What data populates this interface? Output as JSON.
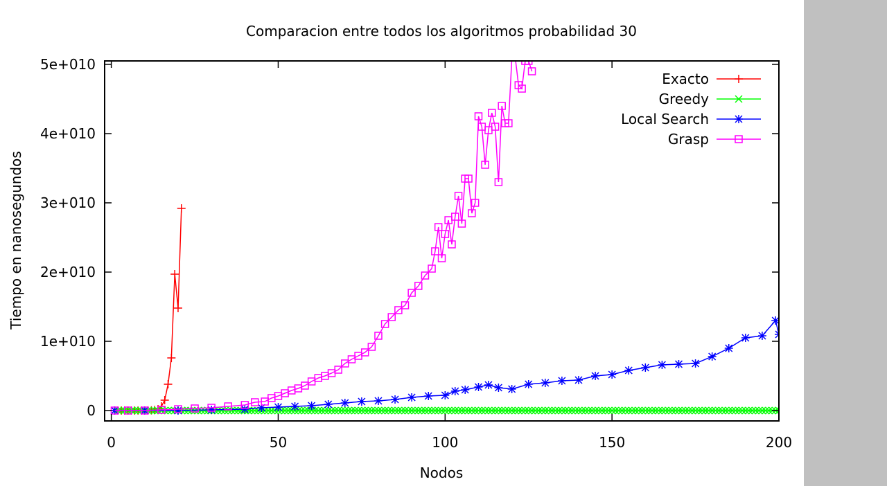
{
  "chart_data": {
    "type": "line",
    "title": "Comparacion entre todos los algoritmos probabilidad 30",
    "xlabel": "Nodos",
    "ylabel": "Tiempo en nanosegundos",
    "xlim": [
      -2,
      200
    ],
    "ylim": [
      -1500000000.0,
      50500000000.0
    ],
    "xticks": [
      0,
      50,
      100,
      150,
      200
    ],
    "xtick_labels": [
      "0",
      "50",
      "100",
      "150",
      "200"
    ],
    "yticks": [
      0,
      10000000000.0,
      20000000000.0,
      30000000000.0,
      40000000000.0,
      50000000000.0
    ],
    "ytick_labels": [
      "0",
      "1e+010",
      "2e+010",
      "3e+010",
      "4e+010",
      "5e+010"
    ],
    "legend_position": "top-right",
    "grid": false,
    "series": [
      {
        "name": "Exacto",
        "color": "#ff0000",
        "marker": "plus",
        "x": [
          1,
          2,
          3,
          4,
          5,
          6,
          7,
          8,
          9,
          10,
          11,
          12,
          13,
          14,
          15,
          16,
          17,
          18,
          19,
          20,
          21
        ],
        "y": [
          0,
          0,
          0,
          0,
          0,
          0,
          0,
          0,
          0,
          0,
          10000000.0,
          30000000.0,
          80000000.0,
          200000000.0,
          600000000.0,
          1500000000.0,
          3800000000.0,
          7600000000.0,
          19700000000.0,
          14800000000.0,
          29200000000.0
        ]
      },
      {
        "name": "Greedy",
        "color": "#00ff00",
        "marker": "x",
        "x_start": 1,
        "x_end": 200,
        "y_value": 0
      },
      {
        "name": "Local Search",
        "color": "#0000ff",
        "marker": "star",
        "x": [
          1,
          10,
          20,
          30,
          40,
          45,
          50,
          55,
          60,
          65,
          70,
          75,
          80,
          85,
          90,
          95,
          100,
          103,
          106,
          110,
          113,
          116,
          120,
          125,
          130,
          135,
          140,
          145,
          150,
          155,
          160,
          165,
          170,
          175,
          180,
          185,
          190,
          195,
          199,
          200
        ],
        "y": [
          0,
          0,
          0,
          100000000.0,
          200000000.0,
          400000000.0,
          500000000.0,
          600000000.0,
          700000000.0,
          900000000.0,
          1100000000.0,
          1300000000.0,
          1400000000.0,
          1600000000.0,
          1900000000.0,
          2100000000.0,
          2200000000.0,
          2800000000.0,
          3000000000.0,
          3400000000.0,
          3700000000.0,
          3300000000.0,
          3100000000.0,
          3800000000.0,
          4000000000.0,
          4300000000.0,
          4400000000.0,
          5000000000.0,
          5200000000.0,
          5800000000.0,
          6200000000.0,
          6600000000.0,
          6700000000.0,
          6800000000.0,
          7800000000.0,
          9000000000.0,
          10500000000.0,
          10800000000.0,
          13000000000.0,
          11000000000.0
        ]
      },
      {
        "name": "Grasp",
        "color": "#ff00ff",
        "marker": "square",
        "x": [
          1,
          5,
          10,
          15,
          20,
          25,
          30,
          35,
          40,
          43,
          46,
          48,
          50,
          52,
          54,
          56,
          58,
          60,
          62,
          64,
          66,
          68,
          70,
          72,
          74,
          76,
          78,
          80,
          82,
          84,
          86,
          88,
          90,
          92,
          94,
          96,
          97,
          98,
          99,
          100,
          101,
          102,
          103,
          104,
          105,
          106,
          107,
          108,
          109,
          110,
          111,
          112,
          113,
          114,
          115,
          116,
          117,
          118,
          119,
          120,
          121,
          122,
          123,
          124,
          125,
          126
        ],
        "y": [
          0,
          0,
          0,
          100000000.0,
          200000000.0,
          300000000.0,
          400000000.0,
          600000000.0,
          800000000.0,
          1200000000.0,
          1300000000.0,
          1800000000.0,
          2100000000.0,
          2500000000.0,
          2900000000.0,
          3200000000.0,
          3600000000.0,
          4200000000.0,
          4700000000.0,
          5000000000.0,
          5400000000.0,
          5900000000.0,
          6800000000.0,
          7400000000.0,
          7900000000.0,
          8400000000.0,
          9200000000.0,
          10800000000.0,
          12500000000.0,
          13500000000.0,
          14500000000.0,
          15200000000.0,
          17000000000.0,
          18000000000.0,
          19500000000.0,
          20500000000.0,
          23000000000.0,
          26500000000.0,
          22000000000.0,
          25500000000.0,
          27500000000.0,
          24000000000.0,
          28000000000.0,
          31000000000.0,
          27000000000.0,
          33500000000.0,
          33500000000.0,
          28500000000.0,
          30000000000.0,
          42500000000.0,
          41000000000.0,
          35500000000.0,
          40500000000.0,
          43000000000.0,
          41000000000.0,
          33000000000.0,
          44000000000.0,
          41500000000.0,
          41500000000.0,
          51000000000.0,
          51000000000.0,
          47000000000.0,
          46500000000.0,
          50500000000.0,
          50500000000.0,
          49000000000.0
        ]
      }
    ]
  }
}
